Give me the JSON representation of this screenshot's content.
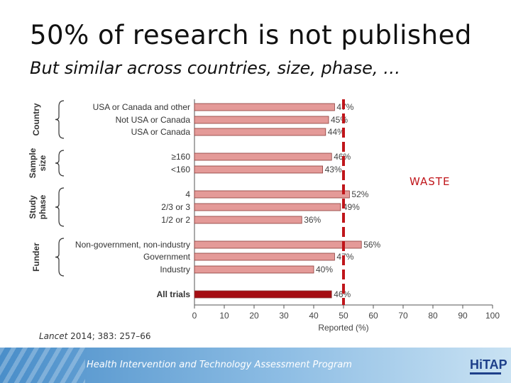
{
  "slide": {
    "title": "50% of research is not published",
    "subtitle": "But similar across countries, size, phase, …",
    "waste_label": "WASTE",
    "citation_journal": "Lancet",
    "citation_ref": " 2014; 383: 257–66",
    "footer_text": "Health Intervention and Technology Assessment Program",
    "logo_text": "HiTAP"
  },
  "colors": {
    "bar": "#e49a98",
    "bar_highlight": "#a50d12",
    "reference_line": "#c0161b",
    "footer": "#5b9bd2"
  },
  "chart_data": {
    "type": "bar",
    "orientation": "horizontal",
    "xlabel": "Reported (%)",
    "xlim": [
      0,
      100
    ],
    "xticks": [
      0,
      10,
      20,
      30,
      40,
      50,
      60,
      70,
      80,
      90,
      100
    ],
    "reference_line": 50,
    "groups": [
      {
        "name": "Country",
        "categories": [
          "USA or Canada and other",
          "Not USA or Canada",
          "USA or Canada"
        ],
        "values": [
          47,
          45,
          44
        ]
      },
      {
        "name": "Sample size",
        "categories": [
          "≥160",
          "<160"
        ],
        "values": [
          46,
          43
        ]
      },
      {
        "name": "Study phase",
        "categories": [
          "4",
          "2/3 or 3",
          "1/2 or 2"
        ],
        "values": [
          52,
          49,
          36
        ]
      },
      {
        "name": "Funder",
        "categories": [
          "Non-government, non-industry",
          "Government",
          "Industry"
        ],
        "values": [
          56,
          47,
          40
        ]
      },
      {
        "name": "",
        "categories": [
          "All trials"
        ],
        "values": [
          46
        ],
        "highlight": true
      }
    ],
    "value_labels": [
      "47%",
      "45%",
      "44%",
      "46%",
      "43%",
      "52%",
      "49%",
      "36%",
      "56%",
      "47%",
      "40%",
      "46%"
    ]
  }
}
